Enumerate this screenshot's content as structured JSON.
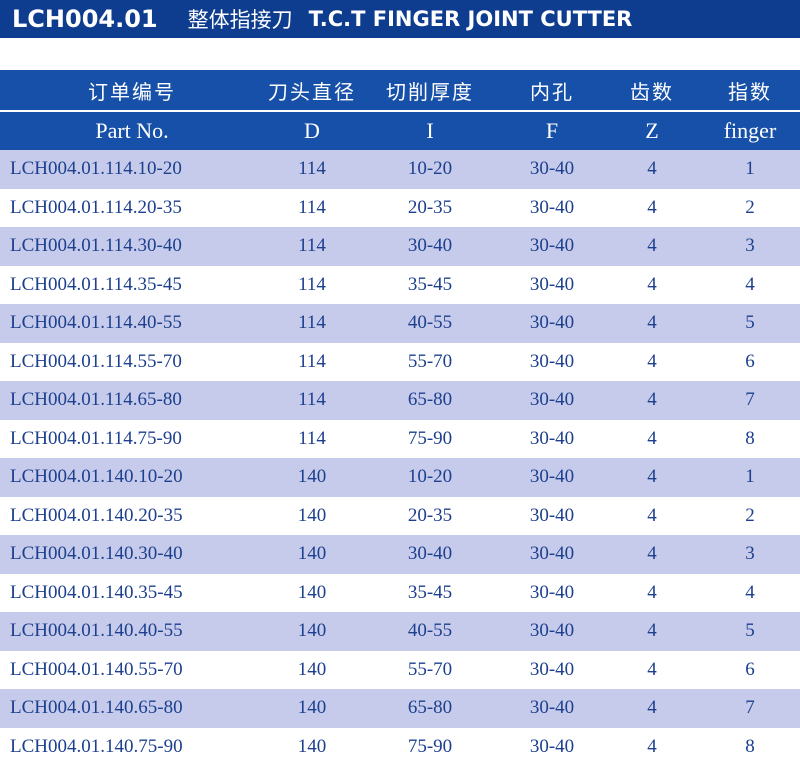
{
  "header": {
    "code": "LCH004.01",
    "title_cn": "整体指接刀",
    "title_en": "T.C.T FINGER JOINT CUTTER"
  },
  "table": {
    "columns_cn": [
      "订单编号",
      "刀头直径",
      "切削厚度",
      "内孔",
      "齿数",
      "指数"
    ],
    "columns_en": [
      "Part No.",
      "D",
      "I",
      "F",
      "Z",
      "finger"
    ],
    "rows": [
      [
        "LCH004.01.114.10-20",
        "114",
        "10-20",
        "30-40",
        "4",
        "1"
      ],
      [
        "LCH004.01.114.20-35",
        "114",
        "20-35",
        "30-40",
        "4",
        "2"
      ],
      [
        "LCH004.01.114.30-40",
        "114",
        "30-40",
        "30-40",
        "4",
        "3"
      ],
      [
        "LCH004.01.114.35-45",
        "114",
        "35-45",
        "30-40",
        "4",
        "4"
      ],
      [
        "LCH004.01.114.40-55",
        "114",
        "40-55",
        "30-40",
        "4",
        "5"
      ],
      [
        "LCH004.01.114.55-70",
        "114",
        "55-70",
        "30-40",
        "4",
        "6"
      ],
      [
        "LCH004.01.114.65-80",
        "114",
        "65-80",
        "30-40",
        "4",
        "7"
      ],
      [
        "LCH004.01.114.75-90",
        "114",
        "75-90",
        "30-40",
        "4",
        "8"
      ],
      [
        "LCH004.01.140.10-20",
        "140",
        "10-20",
        "30-40",
        "4",
        "1"
      ],
      [
        "LCH004.01.140.20-35",
        "140",
        "20-35",
        "30-40",
        "4",
        "2"
      ],
      [
        "LCH004.01.140.30-40",
        "140",
        "30-40",
        "30-40",
        "4",
        "3"
      ],
      [
        "LCH004.01.140.35-45",
        "140",
        "35-45",
        "30-40",
        "4",
        "4"
      ],
      [
        "LCH004.01.140.40-55",
        "140",
        "40-55",
        "30-40",
        "4",
        "5"
      ],
      [
        "LCH004.01.140.55-70",
        "140",
        "55-70",
        "30-40",
        "4",
        "6"
      ],
      [
        "LCH004.01.140.65-80",
        "140",
        "65-80",
        "30-40",
        "4",
        "7"
      ],
      [
        "LCH004.01.140.75-90",
        "140",
        "75-90",
        "30-40",
        "4",
        "8"
      ]
    ]
  },
  "colors": {
    "title_bar": "#0e3d8f",
    "header_row": "#1750a8",
    "stripe": "#c6cbeb",
    "cell_text": "#1c3f8e"
  }
}
